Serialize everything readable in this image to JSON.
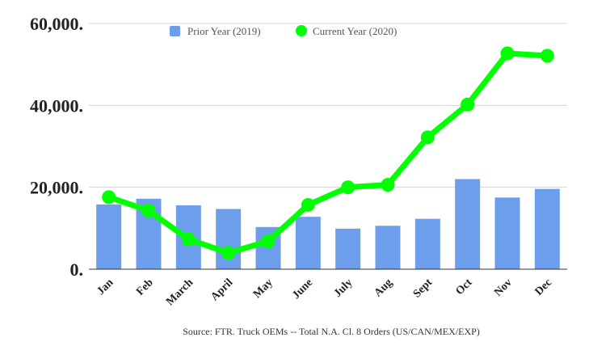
{
  "chart_data": {
    "type": "bar",
    "categories": [
      "Jan",
      "Feb",
      "March",
      "April",
      "May",
      "June",
      "July",
      "Aug",
      "Sept",
      "Oct",
      "Nov",
      "Dec"
    ],
    "series": [
      {
        "name": "Prior Year (2019)",
        "type": "bar",
        "color": "#6d9eeb",
        "values": [
          15800,
          17200,
          15600,
          14700,
          10300,
          12800,
          9900,
          10600,
          12300,
          22000,
          17500,
          19600
        ]
      },
      {
        "name": "Current Year (2020)",
        "type": "line",
        "color": "#00ff00",
        "values": [
          17600,
          14300,
          7300,
          4000,
          6800,
          15700,
          20000,
          20600,
          32200,
          40200,
          52700,
          52100
        ]
      }
    ],
    "y_ticks": [
      {
        "value": 0,
        "label": "0."
      },
      {
        "value": 20000,
        "label": "20,000."
      },
      {
        "value": 40000,
        "label": "40,000."
      },
      {
        "value": 60000,
        "label": "60,000."
      }
    ],
    "ylim": [
      0,
      60000
    ],
    "grid": true,
    "legend_position": "top-center",
    "caption": "Source: FTR. Truck OEMs -- Total N.A. Cl. 8 Orders (US/CAN/MEX/EXP)"
  }
}
